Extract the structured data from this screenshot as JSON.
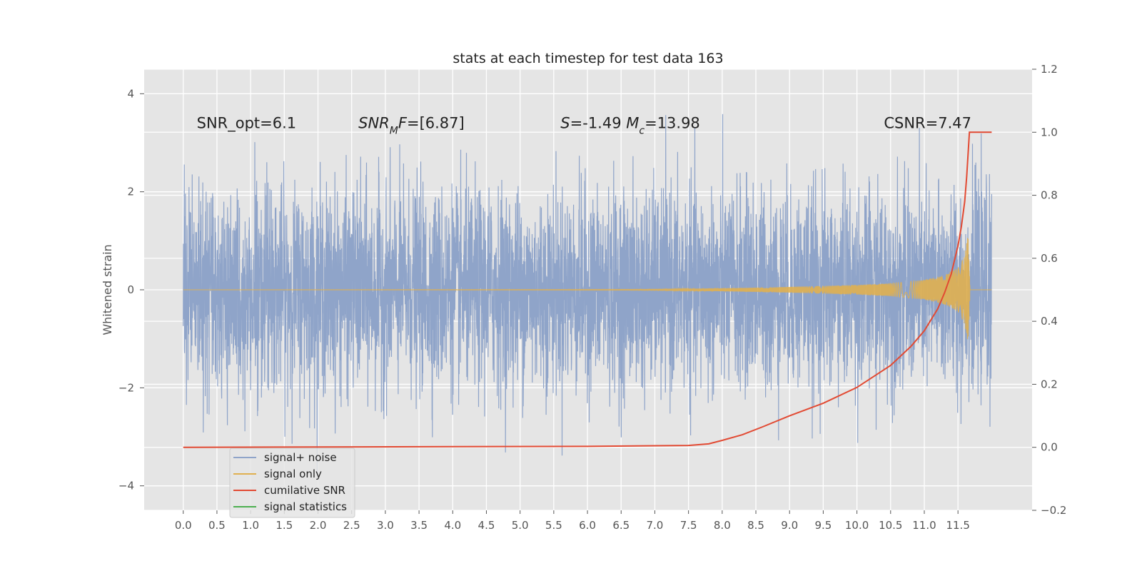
{
  "chart_data": {
    "type": "line",
    "title": "stats at each timestep for test data 163",
    "ylabel": "Whitened strain",
    "xlim": [
      -0.58,
      12.6
    ],
    "ylim": [
      -4.5,
      4.5
    ],
    "y2lim": [
      -0.2,
      1.2
    ],
    "x_ticks": [
      0.0,
      0.5,
      1.0,
      1.5,
      2.0,
      2.5,
      3.0,
      3.5,
      4.0,
      4.5,
      5.0,
      5.5,
      6.0,
      6.5,
      7.0,
      7.5,
      8.0,
      8.5,
      9.0,
      9.5,
      10.0,
      10.5,
      11.0,
      11.5
    ],
    "x_tick_labels": [
      "0.0",
      "0.5",
      "1.0",
      "1.5",
      "2.0",
      "2.5",
      "3.0",
      "3.5",
      "4.0",
      "4.5",
      "5.0",
      "5.5",
      "6.0",
      "6.5",
      "7.0",
      "7.5",
      "8.0",
      "8.5",
      "9.0",
      "9.5",
      "10.0",
      "10.5",
      "11.0",
      "11.5"
    ],
    "y_ticks": [
      -4,
      -2,
      0,
      2,
      4
    ],
    "y_tick_labels": [
      "−4",
      "−2",
      "0",
      "2",
      "4"
    ],
    "y2_ticks": [
      -0.2,
      0.0,
      0.2,
      0.4,
      0.6,
      0.8,
      1.0,
      1.2
    ],
    "y2_tick_labels": [
      "−0.2",
      "0.0",
      "0.2",
      "0.4",
      "0.6",
      "0.8",
      "1.0",
      "1.2"
    ],
    "grid": true,
    "legend_position": "lower-left",
    "series": [
      {
        "name": "signal+ noise",
        "color": "#8fa4c9",
        "axis": "left",
        "x_range": [
          0.0,
          12.0
        ],
        "typical_amplitude": 1.0,
        "max": 4.1,
        "min": -4.1
      },
      {
        "name": "signal only",
        "color": "#e0b050",
        "axis": "left",
        "x": [
          0.0,
          7.0,
          8.0,
          9.0,
          10.0,
          10.5,
          11.0,
          11.3,
          11.5,
          11.6,
          11.65,
          11.68,
          12.0
        ],
        "amplitude": [
          0.0,
          0.01,
          0.03,
          0.06,
          0.1,
          0.13,
          0.2,
          0.3,
          0.45,
          0.7,
          1.15,
          0.0,
          0.0
        ]
      },
      {
        "name": "cumilative SNR",
        "color": "#e24a33",
        "axis": "right",
        "x": [
          0.0,
          2.0,
          4.0,
          6.0,
          7.0,
          7.5,
          7.8,
          8.0,
          8.3,
          8.6,
          9.0,
          9.5,
          10.0,
          10.5,
          10.8,
          11.0,
          11.2,
          11.3,
          11.4,
          11.5,
          11.55,
          11.6,
          11.63,
          11.67,
          11.7,
          12.0
        ],
        "values": [
          0.0,
          0.001,
          0.002,
          0.003,
          0.005,
          0.006,
          0.011,
          0.022,
          0.04,
          0.065,
          0.1,
          0.14,
          0.19,
          0.26,
          0.32,
          0.37,
          0.44,
          0.49,
          0.55,
          0.64,
          0.7,
          0.78,
          0.86,
          1.0,
          1.0,
          1.0
        ]
      },
      {
        "name": "signal statistics",
        "color": "#4caf50",
        "axis": "left",
        "values": []
      }
    ],
    "annotations": [
      {
        "text": "SNR_opt=6.1",
        "x": 0.2,
        "y": 3.3
      },
      {
        "text_html": "<tspan font-style=\"italic\">SNR</tspan><tspan font-style=\"italic\" baseline-shift=\"sub\" font-size=\"14\">M</tspan><tspan font-style=\"italic\">F</tspan>=[6.87]",
        "text": "SNR_MF=[6.87]",
        "x": 2.6,
        "y": 3.3
      },
      {
        "text_html": "<tspan font-style=\"italic\">S</tspan>=-1.49  <tspan font-style=\"italic\">M</tspan><tspan font-style=\"italic\" baseline-shift=\"sub\" font-size=\"14\">c</tspan>=13.98",
        "text": "S=-1.49 M_c=13.98",
        "x": 5.6,
        "y": 3.3
      },
      {
        "text": "CSNR=7.47",
        "x": 10.4,
        "y": 3.3
      }
    ]
  },
  "colors": {
    "plot_background": "#e5e5e5",
    "grid": "#ffffff",
    "noise": "#8fa4c9",
    "signal": "#e0b050",
    "csnr": "#e24a33",
    "stats": "#4caf50"
  }
}
